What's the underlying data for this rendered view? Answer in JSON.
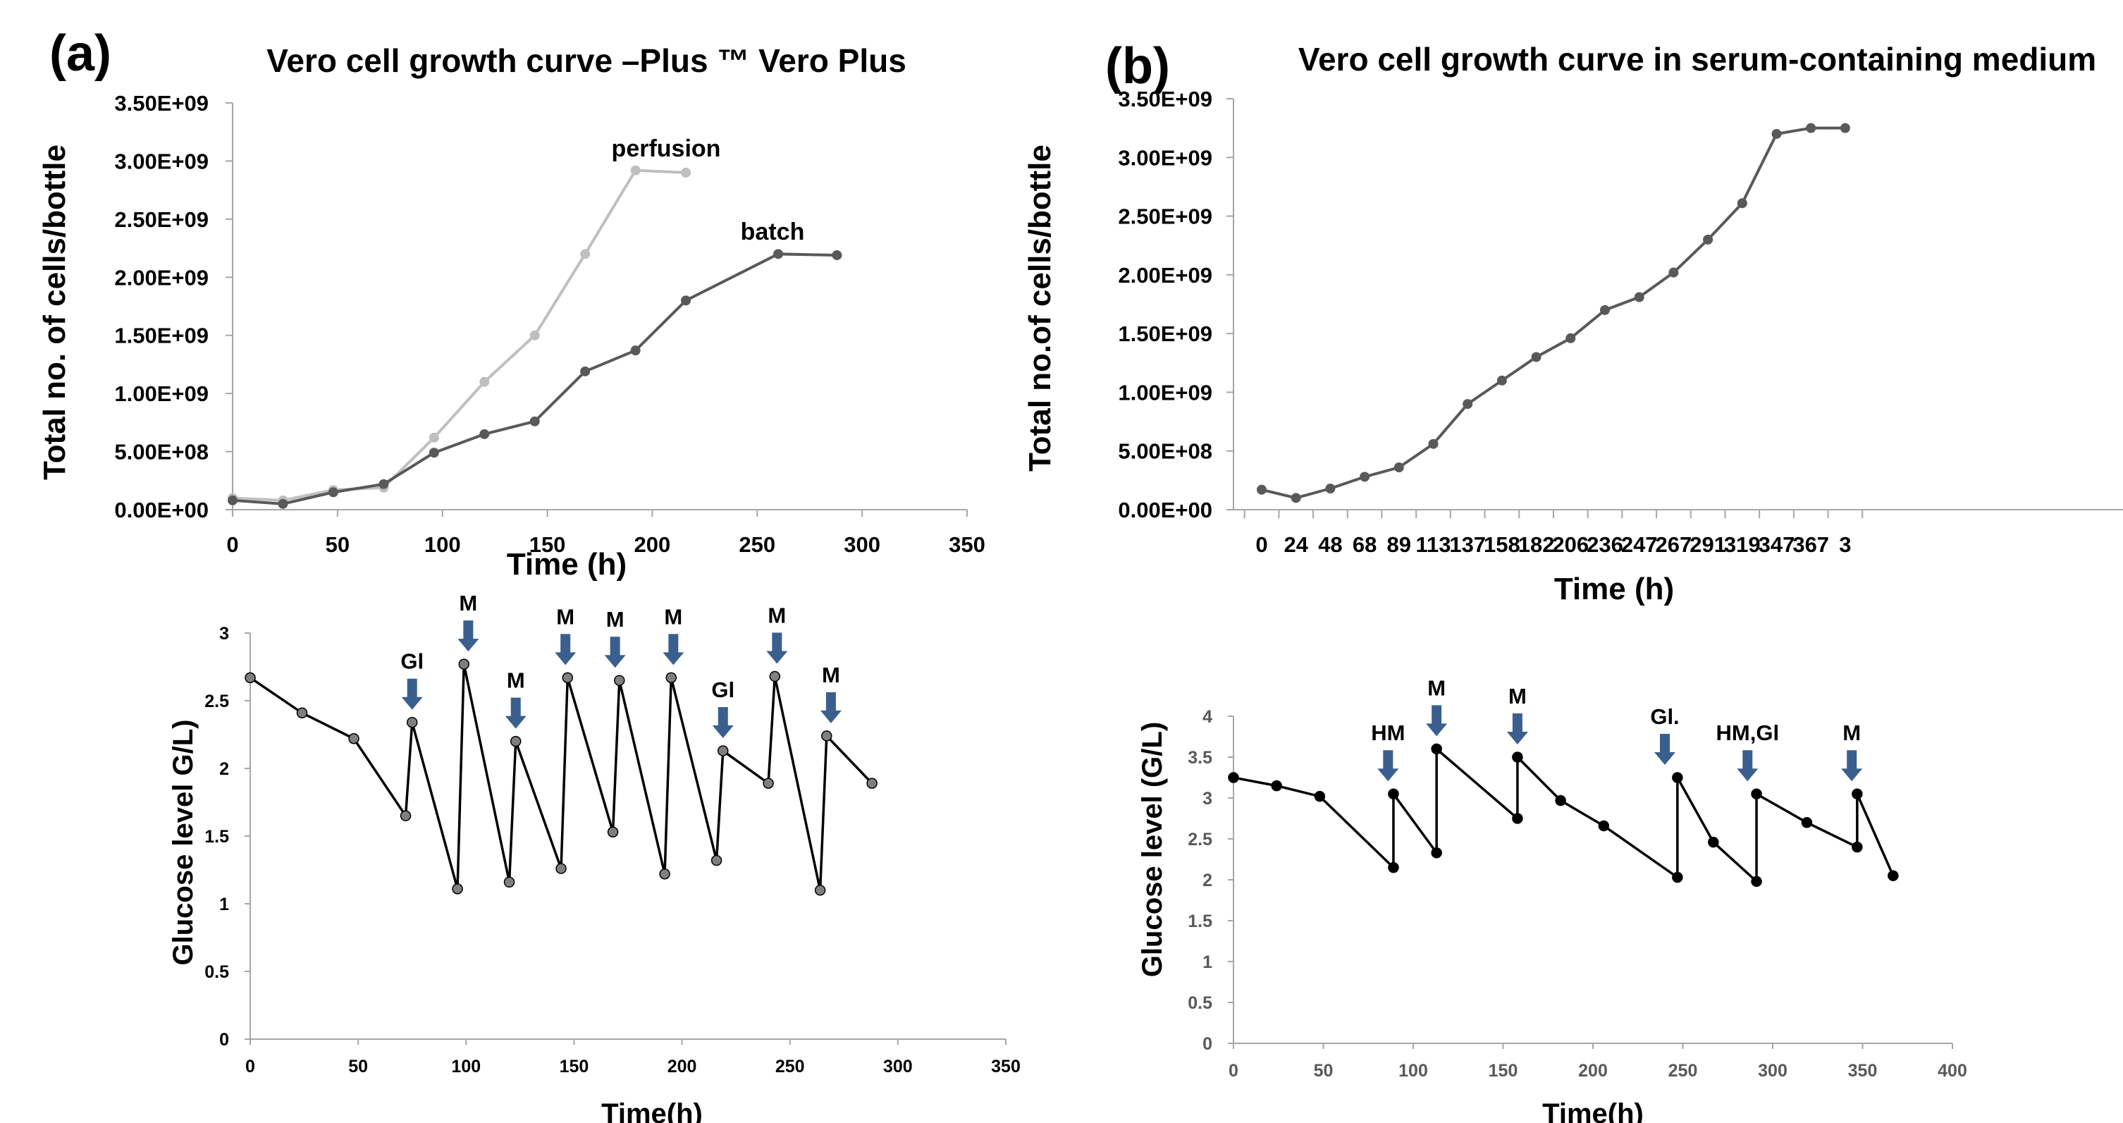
{
  "colors": {
    "perfusion": "#bfbfbf",
    "batch": "#595959",
    "serum_line": "#595959",
    "glucose_a_line": "#000000",
    "glucose_a_marker": "#7f7f7f",
    "glucose_b_line": "#000000",
    "arrow": "#3a5f8f",
    "axis": "#a6a6a6"
  },
  "panels": {
    "a_label": "(a)",
    "b_label": "(b)"
  },
  "chart_data": [
    {
      "id": "a_growth",
      "type": "line",
      "title": "Vero cell growth curve –Plus ™ Vero Plus",
      "xlabel": "Time (h)",
      "ylabel": "Total no. of cells/bottle",
      "xlim": [
        0,
        350
      ],
      "ylim": [
        0,
        3500000000
      ],
      "x_ticks": [
        "0",
        "50",
        "100",
        "150",
        "200",
        "250",
        "300",
        "350"
      ],
      "y_ticks": [
        "0.00E+00",
        "5.00E+08",
        "1.00E+09",
        "1.50E+09",
        "2.00E+09",
        "2.50E+09",
        "3.00E+09",
        "3.50E+09"
      ],
      "series": [
        {
          "name": "perfusion",
          "points": [
            [
              0,
              100000000
            ],
            [
              24,
              80000000
            ],
            [
              48,
              170000000
            ],
            [
              72,
              190000000
            ],
            [
              96,
              620000000
            ],
            [
              120,
              1100000000
            ],
            [
              144,
              1500000000
            ],
            [
              168,
              2200000000
            ],
            [
              192,
              2920000000
            ],
            [
              216,
              2900000000
            ]
          ]
        },
        {
          "name": "batch",
          "points": [
            [
              0,
              80000000
            ],
            [
              24,
              50000000
            ],
            [
              48,
              150000000
            ],
            [
              72,
              220000000
            ],
            [
              96,
              490000000
            ],
            [
              120,
              650000000
            ],
            [
              144,
              760000000
            ],
            [
              168,
              1190000000
            ],
            [
              192,
              1370000000
            ],
            [
              216,
              1800000000
            ],
            [
              260,
              2200000000
            ],
            [
              288,
              2190000000
            ]
          ]
        }
      ]
    },
    {
      "id": "b_growth",
      "type": "line",
      "title": "Vero cell growth curve in serum-containing medium",
      "xlabel": "Time (h)",
      "ylabel": "Total no.of cells/bottle",
      "ylim": [
        0,
        3500000000
      ],
      "categories": [
        "0",
        "24",
        "48",
        "68",
        "89",
        "113",
        "137",
        "158",
        "182",
        "206",
        "236",
        "247",
        "267",
        "291",
        "319",
        "347",
        "367",
        "3"
      ],
      "y_ticks": [
        "0.00E+00",
        "5.00E+08",
        "1.00E+09",
        "1.50E+09",
        "2.00E+09",
        "2.50E+09",
        "3.00E+09",
        "3.50E+09"
      ],
      "series": [
        {
          "values": [
            170000000,
            100000000,
            180000000,
            280000000,
            360000000,
            560000000,
            900000000,
            1100000000,
            1300000000,
            1460000000,
            1700000000,
            1810000000,
            2020000000,
            2300000000,
            2610000000,
            3200000000,
            3250000000,
            3250000000
          ]
        }
      ]
    },
    {
      "id": "a_glucose",
      "type": "line",
      "xlabel": "Time(h)",
      "ylabel": "Glucose level  G/L)",
      "xlim": [
        0,
        350
      ],
      "ylim": [
        0,
        3
      ],
      "x_ticks": [
        "0",
        "50",
        "100",
        "150",
        "200",
        "250",
        "300",
        "350"
      ],
      "y_ticks": [
        "0",
        "0.5",
        "1",
        "1.5",
        "2",
        "2.5",
        "3"
      ],
      "series": [
        {
          "points": [
            [
              0,
              2.67
            ],
            [
              24,
              2.41
            ],
            [
              48,
              2.22
            ],
            [
              72,
              1.65
            ],
            [
              75,
              2.34
            ],
            [
              96,
              1.11
            ],
            [
              99,
              2.77
            ],
            [
              120,
              1.16
            ],
            [
              123,
              2.2
            ],
            [
              144,
              1.26
            ],
            [
              147,
              2.67
            ],
            [
              168,
              1.53
            ],
            [
              171,
              2.65
            ],
            [
              192,
              1.22
            ],
            [
              195,
              2.67
            ],
            [
              216,
              1.32
            ],
            [
              219,
              2.13
            ],
            [
              240,
              1.89
            ],
            [
              243,
              2.68
            ],
            [
              264,
              1.1
            ],
            [
              267,
              2.24
            ],
            [
              288,
              1.89
            ]
          ]
        }
      ],
      "events": [
        {
          "label": "Gl",
          "x": 75,
          "y": 2.34
        },
        {
          "label": "M",
          "x": 101,
          "y": 2.77
        },
        {
          "label": "M",
          "x": 123,
          "y": 2.2
        },
        {
          "label": "M",
          "x": 146,
          "y": 2.67
        },
        {
          "label": "M",
          "x": 169,
          "y": 2.65
        },
        {
          "label": "M",
          "x": 196,
          "y": 2.67
        },
        {
          "label": "Gl",
          "x": 219,
          "y": 2.13
        },
        {
          "label": "M",
          "x": 244,
          "y": 2.68
        },
        {
          "label": "M",
          "x": 269,
          "y": 2.24
        }
      ]
    },
    {
      "id": "b_glucose",
      "type": "line",
      "xlabel": "Time(h)",
      "ylabel": "Glucose level (G/L)",
      "xlim": [
        0,
        400
      ],
      "ylim": [
        0,
        4
      ],
      "x_ticks": [
        "0",
        "50",
        "100",
        "150",
        "200",
        "250",
        "300",
        "350",
        "400"
      ],
      "y_ticks": [
        "0",
        "0.5",
        "1",
        "1.5",
        "2",
        "2.5",
        "3",
        "3.5",
        "4"
      ],
      "series": [
        {
          "points": [
            [
              0,
              3.25
            ],
            [
              24,
              3.15
            ],
            [
              48,
              3.02
            ],
            [
              89,
              2.15
            ],
            [
              89,
              3.05
            ],
            [
              113,
              2.33
            ],
            [
              113,
              3.6
            ],
            [
              158,
              2.75
            ],
            [
              158,
              3.5
            ],
            [
              182,
              2.97
            ],
            [
              206,
              2.66
            ],
            [
              247,
              2.03
            ],
            [
              247,
              3.25
            ],
            [
              267,
              2.46
            ],
            [
              291,
              1.98
            ],
            [
              291,
              3.05
            ],
            [
              319,
              2.7
            ],
            [
              347,
              2.4
            ],
            [
              347,
              3.05
            ],
            [
              367,
              2.05
            ]
          ]
        }
      ],
      "events": [
        {
          "label": "HM",
          "x": 86,
          "y": 3.05
        },
        {
          "label": "M",
          "x": 113,
          "y": 3.6
        },
        {
          "label": "M",
          "x": 158,
          "y": 3.5
        },
        {
          "label": "Gl.",
          "x": 240,
          "y": 3.25
        },
        {
          "label": "HM,Gl",
          "x": 286,
          "y": 3.05
        },
        {
          "label": "M",
          "x": 344,
          "y": 3.05
        }
      ]
    }
  ]
}
